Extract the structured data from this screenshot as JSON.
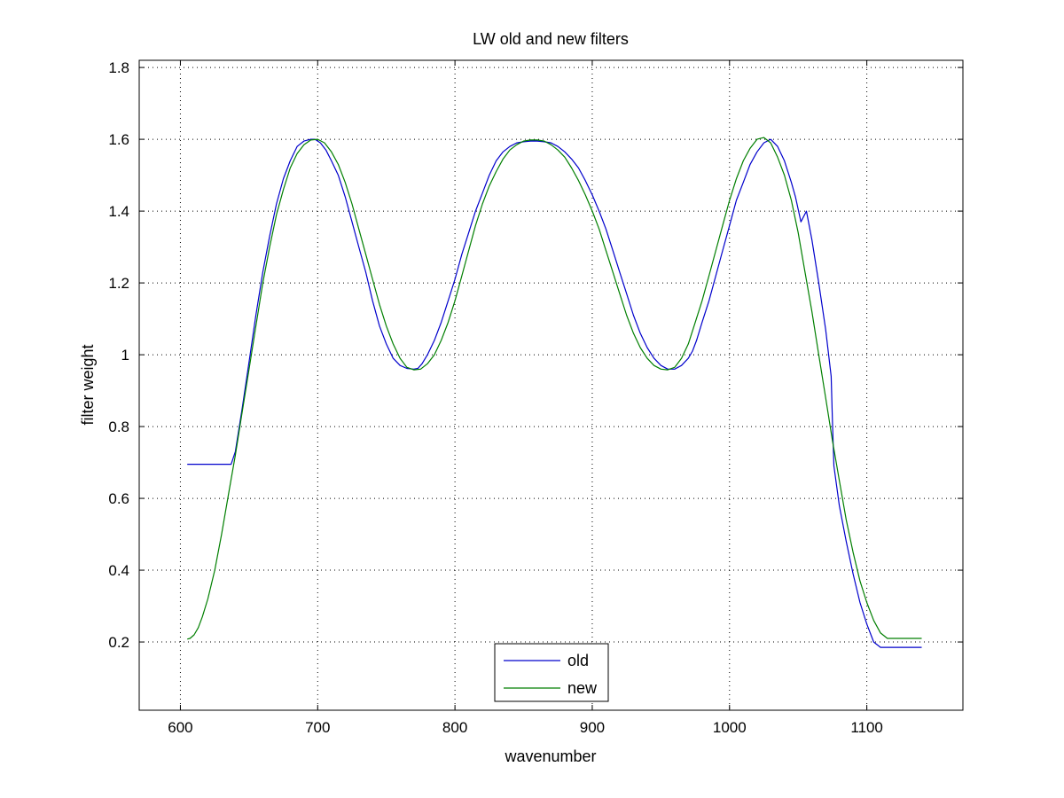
{
  "chart_data": {
    "type": "line",
    "title": "LW old and new filters",
    "xlabel": "wavenumber",
    "ylabel": "filter weight",
    "xlim": [
      570,
      1170
    ],
    "ylim": [
      0.01,
      1.82
    ],
    "xticks": [
      600,
      700,
      800,
      900,
      1000,
      1100
    ],
    "yticks": [
      0.2,
      0.4,
      0.6,
      0.8,
      1,
      1.2,
      1.4,
      1.6,
      1.8
    ],
    "grid": true,
    "legend": "bottom-center",
    "series": [
      {
        "name": "old",
        "color": "#0000cc",
        "x": [
          605,
          620,
          635,
          637,
          640,
          645,
          650,
          655,
          660,
          665,
          670,
          675,
          680,
          685,
          690,
          695,
          698,
          702,
          706,
          710,
          715,
          720,
          725,
          730,
          735,
          740,
          745,
          750,
          755,
          760,
          765,
          770,
          773,
          776,
          780,
          785,
          790,
          795,
          800,
          805,
          810,
          815,
          820,
          825,
          830,
          835,
          840,
          845,
          850,
          855,
          860,
          865,
          870,
          875,
          880,
          885,
          890,
          895,
          900,
          905,
          910,
          915,
          920,
          925,
          930,
          935,
          940,
          945,
          950,
          955,
          960,
          965,
          970,
          973,
          976,
          980,
          985,
          990,
          995,
          1000,
          1005,
          1010,
          1015,
          1020,
          1025,
          1030,
          1035,
          1040,
          1045,
          1048,
          1052,
          1056,
          1060,
          1065,
          1070,
          1074,
          1075,
          1076,
          1080,
          1085,
          1090,
          1095,
          1100,
          1105,
          1110,
          1115,
          1120,
          1125,
          1130,
          1135,
          1140
        ],
        "y": [
          0.695,
          0.695,
          0.695,
          0.695,
          0.73,
          0.85,
          0.98,
          1.11,
          1.23,
          1.33,
          1.42,
          1.49,
          1.54,
          1.58,
          1.595,
          1.6,
          1.6,
          1.59,
          1.57,
          1.54,
          1.5,
          1.44,
          1.37,
          1.3,
          1.23,
          1.15,
          1.08,
          1.03,
          0.99,
          0.97,
          0.962,
          0.96,
          0.962,
          0.975,
          1.0,
          1.04,
          1.09,
          1.15,
          1.21,
          1.28,
          1.34,
          1.4,
          1.45,
          1.5,
          1.54,
          1.565,
          1.58,
          1.59,
          1.593,
          1.595,
          1.595,
          1.593,
          1.59,
          1.58,
          1.565,
          1.545,
          1.52,
          1.485,
          1.445,
          1.4,
          1.35,
          1.29,
          1.23,
          1.17,
          1.11,
          1.06,
          1.02,
          0.99,
          0.97,
          0.96,
          0.96,
          0.97,
          0.99,
          1.01,
          1.04,
          1.09,
          1.15,
          1.22,
          1.29,
          1.36,
          1.43,
          1.48,
          1.53,
          1.565,
          1.59,
          1.6,
          1.58,
          1.54,
          1.48,
          1.44,
          1.37,
          1.4,
          1.32,
          1.2,
          1.07,
          0.94,
          0.81,
          0.69,
          0.58,
          0.48,
          0.39,
          0.31,
          0.25,
          0.2,
          0.185,
          0.185,
          0.185,
          0.185,
          0.185,
          0.185,
          0.185
        ]
      },
      {
        "name": "new",
        "color": "#007f00",
        "x": [
          605,
          607,
          610,
          613,
          616,
          620,
          625,
          630,
          635,
          640,
          645,
          650,
          655,
          660,
          665,
          670,
          675,
          680,
          685,
          690,
          695,
          700,
          705,
          710,
          715,
          720,
          725,
          730,
          735,
          740,
          745,
          750,
          755,
          760,
          765,
          770,
          775,
          780,
          785,
          790,
          795,
          800,
          805,
          810,
          815,
          820,
          825,
          830,
          835,
          840,
          845,
          850,
          855,
          860,
          865,
          870,
          875,
          880,
          885,
          890,
          895,
          900,
          905,
          910,
          915,
          920,
          925,
          930,
          935,
          940,
          945,
          950,
          955,
          960,
          965,
          970,
          975,
          980,
          985,
          990,
          995,
          1000,
          1005,
          1010,
          1015,
          1020,
          1025,
          1030,
          1035,
          1040,
          1045,
          1050,
          1055,
          1060,
          1065,
          1070,
          1075,
          1080,
          1085,
          1090,
          1095,
          1100,
          1105,
          1110,
          1115,
          1120,
          1125,
          1130,
          1135,
          1140
        ],
        "y": [
          0.208,
          0.21,
          0.22,
          0.24,
          0.27,
          0.32,
          0.4,
          0.5,
          0.61,
          0.72,
          0.84,
          0.96,
          1.08,
          1.2,
          1.3,
          1.39,
          1.46,
          1.52,
          1.56,
          1.585,
          1.598,
          1.6,
          1.59,
          1.565,
          1.53,
          1.48,
          1.42,
          1.35,
          1.28,
          1.21,
          1.14,
          1.08,
          1.03,
          0.99,
          0.965,
          0.958,
          0.96,
          0.975,
          1.0,
          1.04,
          1.09,
          1.15,
          1.22,
          1.29,
          1.36,
          1.42,
          1.47,
          1.51,
          1.545,
          1.57,
          1.585,
          1.595,
          1.598,
          1.598,
          1.595,
          1.585,
          1.57,
          1.55,
          1.52,
          1.485,
          1.445,
          1.4,
          1.35,
          1.29,
          1.23,
          1.17,
          1.11,
          1.06,
          1.02,
          0.99,
          0.97,
          0.96,
          0.958,
          0.965,
          0.99,
          1.03,
          1.09,
          1.15,
          1.22,
          1.29,
          1.36,
          1.43,
          1.49,
          1.54,
          1.575,
          1.6,
          1.605,
          1.59,
          1.55,
          1.5,
          1.43,
          1.34,
          1.23,
          1.12,
          1.0,
          0.88,
          0.76,
          0.65,
          0.54,
          0.45,
          0.37,
          0.31,
          0.26,
          0.225,
          0.21,
          0.21,
          0.21,
          0.21,
          0.21,
          0.21
        ]
      }
    ]
  }
}
